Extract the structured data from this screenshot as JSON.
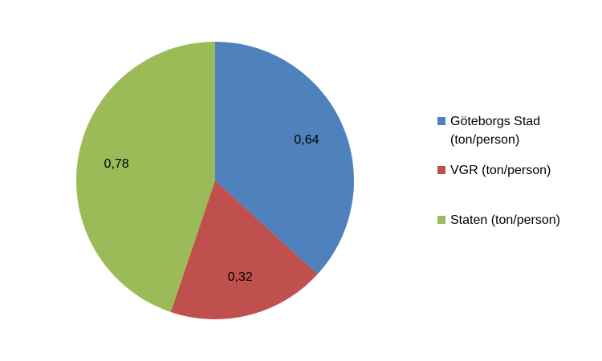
{
  "chart_data": {
    "type": "pie",
    "categories": [
      "Göteborgs Stad (ton/person)",
      "VGR (ton/person)",
      "Staten (ton/person)"
    ],
    "values": [
      0.64,
      0.32,
      0.78
    ],
    "value_labels": [
      "0,64",
      "0,32",
      "0,78"
    ],
    "colors": [
      "#4f81bd",
      "#c0504d",
      "#9bbb59"
    ],
    "legend": "right"
  }
}
